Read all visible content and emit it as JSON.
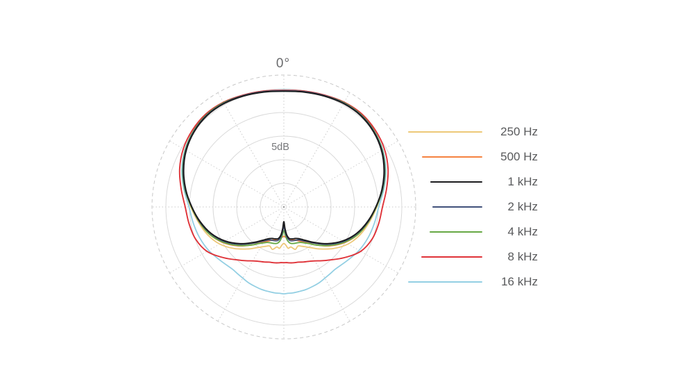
{
  "chart_data": {
    "type": "line",
    "subtype": "polar-pattern",
    "title": "",
    "angle_label": "0°",
    "scale_label": "5dB",
    "db_per_ring": 5,
    "rings_db": [
      0,
      -5,
      -10,
      -15,
      -20
    ],
    "center_db": -25,
    "outer_dashed_ring": true,
    "radial_step_deg": 30,
    "legend_position": "right",
    "symmetric_mirror": true,
    "style": {
      "ring_color": "#d9d9d9",
      "dashed_ring_color": "#c7c7c7",
      "radial_color": "#c9c9c9",
      "center_dot_color": "#9a9a9a",
      "label_color": "#58595B"
    },
    "angles_deg": [
      0,
      10,
      20,
      30,
      40,
      50,
      60,
      70,
      80,
      90,
      100,
      110,
      120,
      130,
      140,
      145,
      150,
      155,
      160,
      165,
      170,
      174,
      177,
      180
    ],
    "series": [
      {
        "name": "250 Hz",
        "color": "#EDC878",
        "swatch_len": 107,
        "stroke": 1.8,
        "db": [
          -0.4,
          -0.2,
          0.1,
          0.4,
          0.4,
          -0.1,
          -1.0,
          -2.3,
          -3.8,
          -5.3,
          -6.6,
          -7.8,
          -9.3,
          -11.3,
          -13.4,
          -14.4,
          -15.2,
          -15.8,
          -16.2,
          -15.7,
          -16.4,
          -16.2,
          -16.9,
          -17.3
        ]
      },
      {
        "name": "500 Hz",
        "color": "#F5823F",
        "swatch_len": 87,
        "stroke": 1.8,
        "db": [
          -0.3,
          -0.1,
          0.2,
          0.5,
          0.5,
          0.0,
          -0.9,
          -2.2,
          -3.7,
          -5.4,
          -6.8,
          -8.2,
          -10.0,
          -12.2,
          -14.5,
          -15.6,
          -16.4,
          -17.0,
          -17.5,
          -17.8,
          -18.1,
          -18.4,
          -18.6,
          -18.8
        ]
      },
      {
        "name": "1 kHz",
        "color": "#1C1C1E",
        "swatch_len": 75,
        "stroke": 2.0,
        "db": [
          -0.5,
          -0.3,
          0.0,
          0.3,
          0.3,
          -0.2,
          -1.1,
          -2.4,
          -3.9,
          -5.5,
          -7.0,
          -8.6,
          -10.6,
          -12.9,
          -15.2,
          -16.2,
          -17.0,
          -17.6,
          -17.9,
          -18.0,
          -18.2,
          -19.0,
          -20.4,
          -21.9
        ]
      },
      {
        "name": "2 kHz",
        "color": "#41517A",
        "swatch_len": 72,
        "stroke": 1.8,
        "db": [
          -0.4,
          -0.2,
          0.1,
          0.4,
          0.4,
          -0.1,
          -1.0,
          -2.3,
          -3.8,
          -5.5,
          -6.9,
          -8.5,
          -10.4,
          -12.7,
          -15.0,
          -16.0,
          -16.7,
          -17.3,
          -17.5,
          -17.6,
          -17.8,
          -18.6,
          -19.8,
          -20.9
        ]
      },
      {
        "name": "4 kHz",
        "color": "#66A844",
        "swatch_len": 76,
        "stroke": 1.8,
        "db": [
          -0.4,
          -0.2,
          0.1,
          0.5,
          0.5,
          0.0,
          -0.9,
          -2.2,
          -3.7,
          -5.4,
          -6.8,
          -8.2,
          -10.1,
          -12.3,
          -14.5,
          -15.5,
          -16.2,
          -16.7,
          -16.9,
          -17.0,
          -17.2,
          -17.9,
          -19.0,
          -20.0
        ]
      },
      {
        "name": "8 kHz",
        "color": "#DF3238",
        "swatch_len": 88,
        "stroke": 1.9,
        "db": [
          -0.3,
          -0.1,
          0.2,
          0.6,
          0.7,
          0.3,
          -0.4,
          -1.5,
          -2.9,
          -4.1,
          -4.6,
          -5.1,
          -6.2,
          -8.3,
          -10.3,
          -11.1,
          -11.8,
          -12.3,
          -12.6,
          -12.9,
          -13.0,
          -13.1,
          -13.2,
          -13.2
        ]
      },
      {
        "name": "16 kHz",
        "color": "#93CFE3",
        "swatch_len": 107,
        "stroke": 1.8,
        "db": [
          -0.2,
          -0.1,
          0.2,
          0.5,
          0.5,
          0.0,
          -0.8,
          -2.0,
          -3.5,
          -4.9,
          -5.5,
          -6.0,
          -6.6,
          -7.4,
          -7.9,
          -7.8,
          -7.6,
          -7.3,
          -7.1,
          -6.9,
          -6.8,
          -6.7,
          -6.7,
          -6.6
        ]
      }
    ],
    "draw_order": [
      "250 Hz",
      "500 Hz",
      "16 kHz",
      "8 kHz",
      "4 kHz",
      "2 kHz",
      "1 kHz"
    ]
  }
}
